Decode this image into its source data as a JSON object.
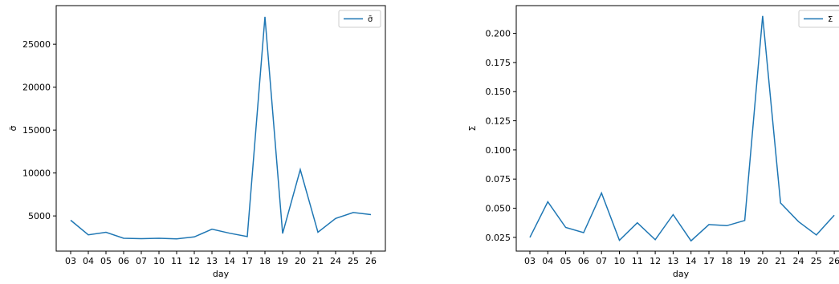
{
  "chart_data": [
    {
      "type": "line",
      "categories": [
        "03",
        "04",
        "05",
        "06",
        "07",
        "10",
        "11",
        "12",
        "13",
        "14",
        "17",
        "18",
        "19",
        "20",
        "21",
        "24",
        "25",
        "26"
      ],
      "series": [
        {
          "name": "σ̄",
          "color": "#1f77b4",
          "values": [
            4500,
            2800,
            3100,
            2400,
            2350,
            2400,
            2330,
            2550,
            3450,
            2980,
            2600,
            28200,
            2950,
            10400,
            3100,
            4700,
            5400,
            5150
          ]
        }
      ],
      "xlabel": "day",
      "ylabel": "σ̄",
      "yticks": [
        5000,
        10000,
        15000,
        20000,
        25000
      ],
      "ylim": [
        900,
        29500
      ],
      "legend": "top-right",
      "grid": false
    },
    {
      "type": "line",
      "categories": [
        "03",
        "04",
        "05",
        "06",
        "07",
        "10",
        "11",
        "12",
        "13",
        "14",
        "17",
        "18",
        "19",
        "20",
        "21",
        "24",
        "25",
        "26"
      ],
      "series": [
        {
          "name": "Σ",
          "color": "#1f77b4",
          "values": [
            0.025,
            0.0555,
            0.0335,
            0.029,
            0.063,
            0.0225,
            0.0375,
            0.023,
            0.0445,
            0.022,
            0.036,
            0.035,
            0.0395,
            0.215,
            0.0545,
            0.0385,
            0.027,
            0.044
          ]
        }
      ],
      "xlabel": "day",
      "ylabel": "Σ",
      "yticks": [
        "0.025",
        "0.050",
        "0.075",
        "0.100",
        "0.125",
        "0.150",
        "0.175",
        "0.200"
      ],
      "ylim": [
        0.0132,
        0.2238
      ],
      "legend": "top-right",
      "grid": false
    }
  ]
}
